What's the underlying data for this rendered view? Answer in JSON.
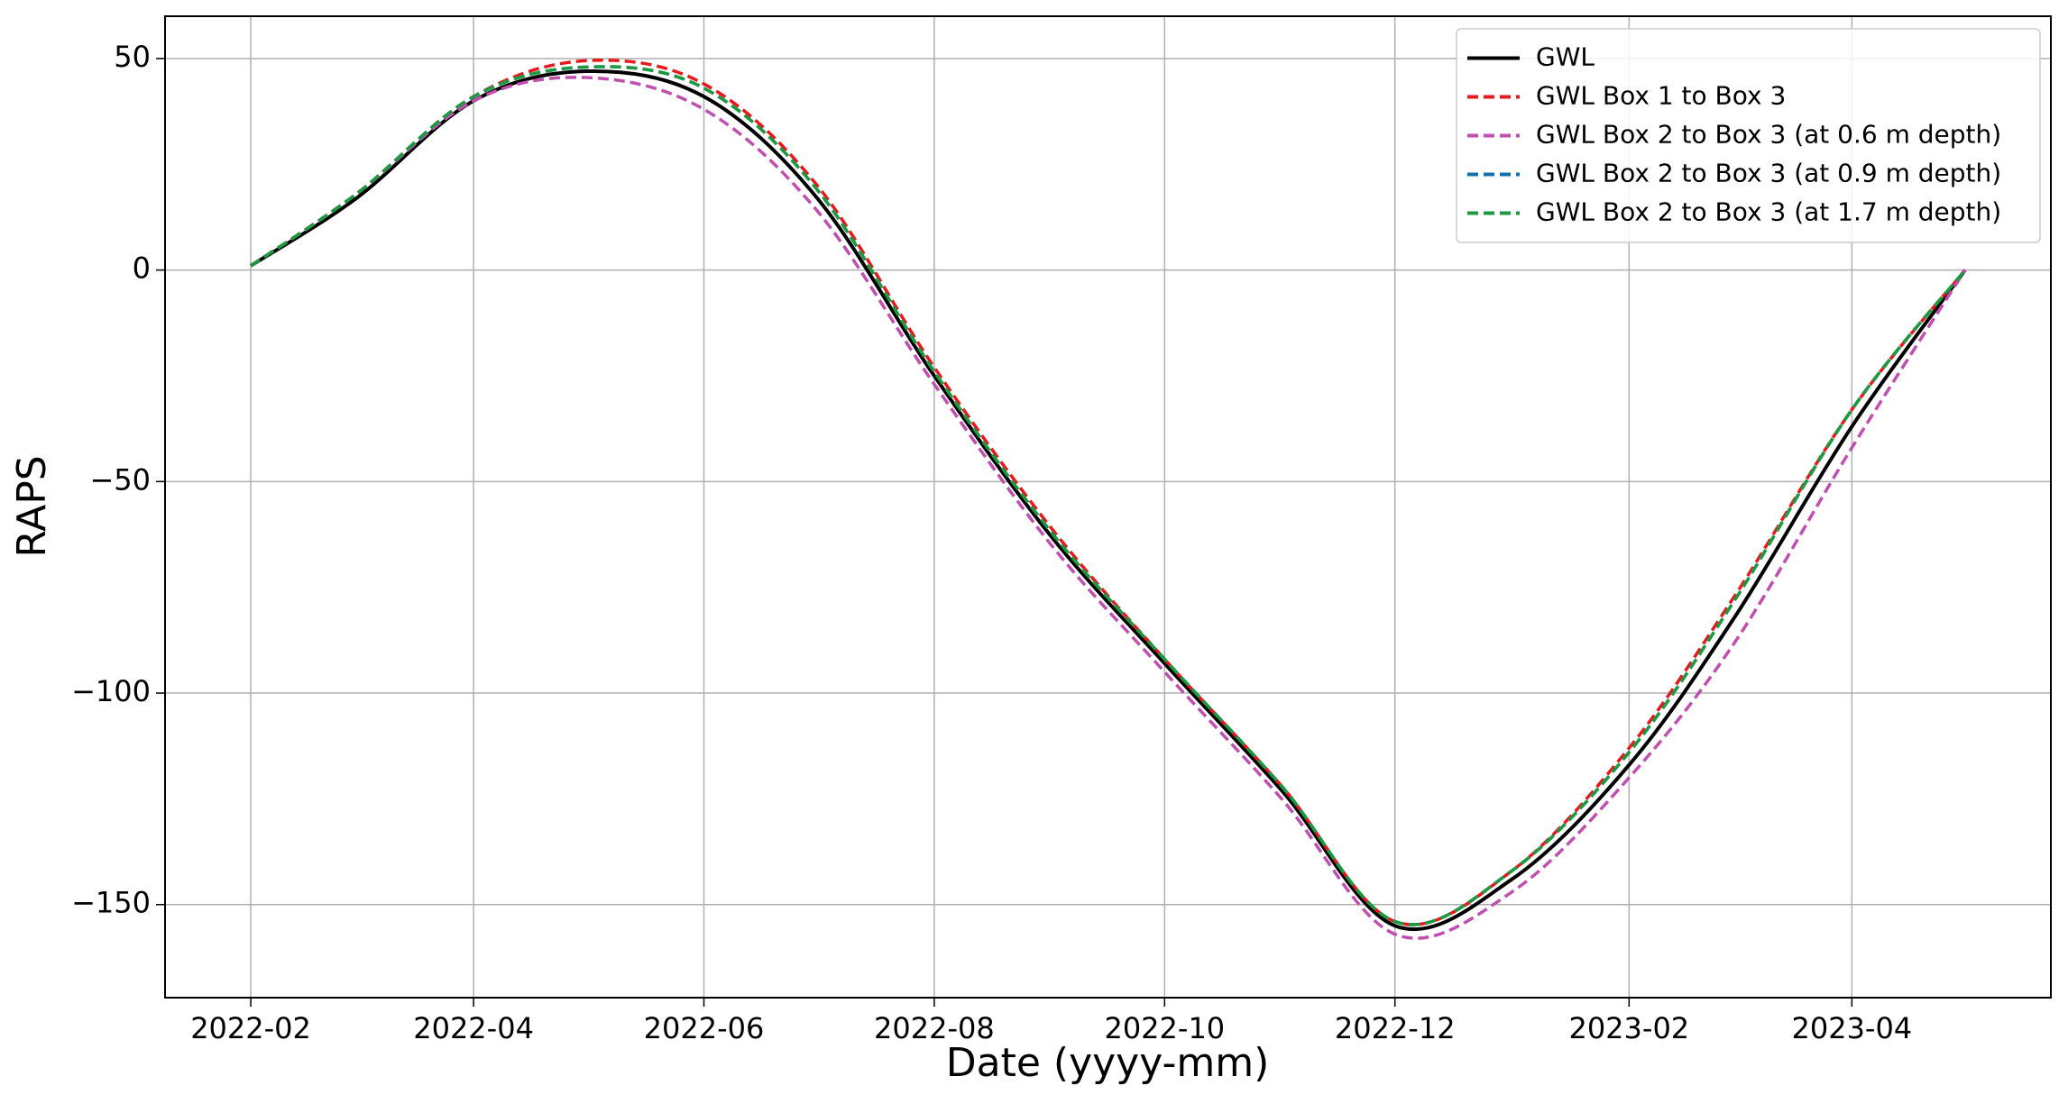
{
  "chart_data": {
    "type": "line",
    "x_label": "Date (yyyy-mm)",
    "y_label": "RAPS",
    "x": [
      "2022-02",
      "2022-03",
      "2022-04",
      "2022-05",
      "2022-06",
      "2022-07",
      "2022-08",
      "2022-09",
      "2022-10",
      "2022-11",
      "2022-12",
      "2023-01",
      "2023-02",
      "2023-03",
      "2023-04",
      "2023-05"
    ],
    "series": [
      {
        "name": "GWL",
        "color": "#000000",
        "dash": false,
        "values": [
          1,
          17,
          40,
          47,
          41,
          17,
          -25,
          -63,
          -93,
          -123,
          -155,
          -144,
          -117,
          -82,
          -37,
          0
        ]
      },
      {
        "name": "GWL Box 1 to Box 3",
        "color": "#e8191c",
        "dash": true,
        "values": [
          1,
          18,
          41,
          49.5,
          44,
          20,
          -23,
          -61,
          -92,
          -122,
          -154,
          -142,
          -113,
          -77,
          -33,
          0
        ]
      },
      {
        "name": "GWL Box 2 to Box 3 (at 0.6 m depth)",
        "color": "#c04fb0",
        "dash": true,
        "values": [
          1,
          18,
          40,
          45.5,
          38,
          14,
          -27,
          -65,
          -95,
          -125,
          -157,
          -147,
          -120,
          -88,
          -42,
          0
        ]
      },
      {
        "name": "GWL Box 2 to Box 3 (at 0.9 m depth)",
        "color": "#1170b0",
        "dash": true,
        "values": [
          1,
          18,
          41,
          48,
          43,
          19,
          -24,
          -62,
          -92,
          -122,
          -154,
          -142,
          -114,
          -78,
          -33,
          0
        ]
      },
      {
        "name": "GWL Box 2 to Box 3 (at 1.7 m depth)",
        "color": "#1e9a3e",
        "dash": true,
        "values": [
          1,
          18,
          41,
          48,
          43,
          19,
          -24,
          -62,
          -92,
          -122,
          -154,
          -142,
          -114,
          -78,
          -33,
          0
        ]
      }
    ],
    "ylim": [
      -172,
      60
    ],
    "yticks": [
      -150,
      -100,
      -50,
      0,
      50
    ],
    "xticks": [
      "2022-02",
      "2022-04",
      "2022-06",
      "2022-08",
      "2022-10",
      "2022-12",
      "2023-02",
      "2023-04"
    ],
    "grid": true,
    "legend": "upper right"
  }
}
